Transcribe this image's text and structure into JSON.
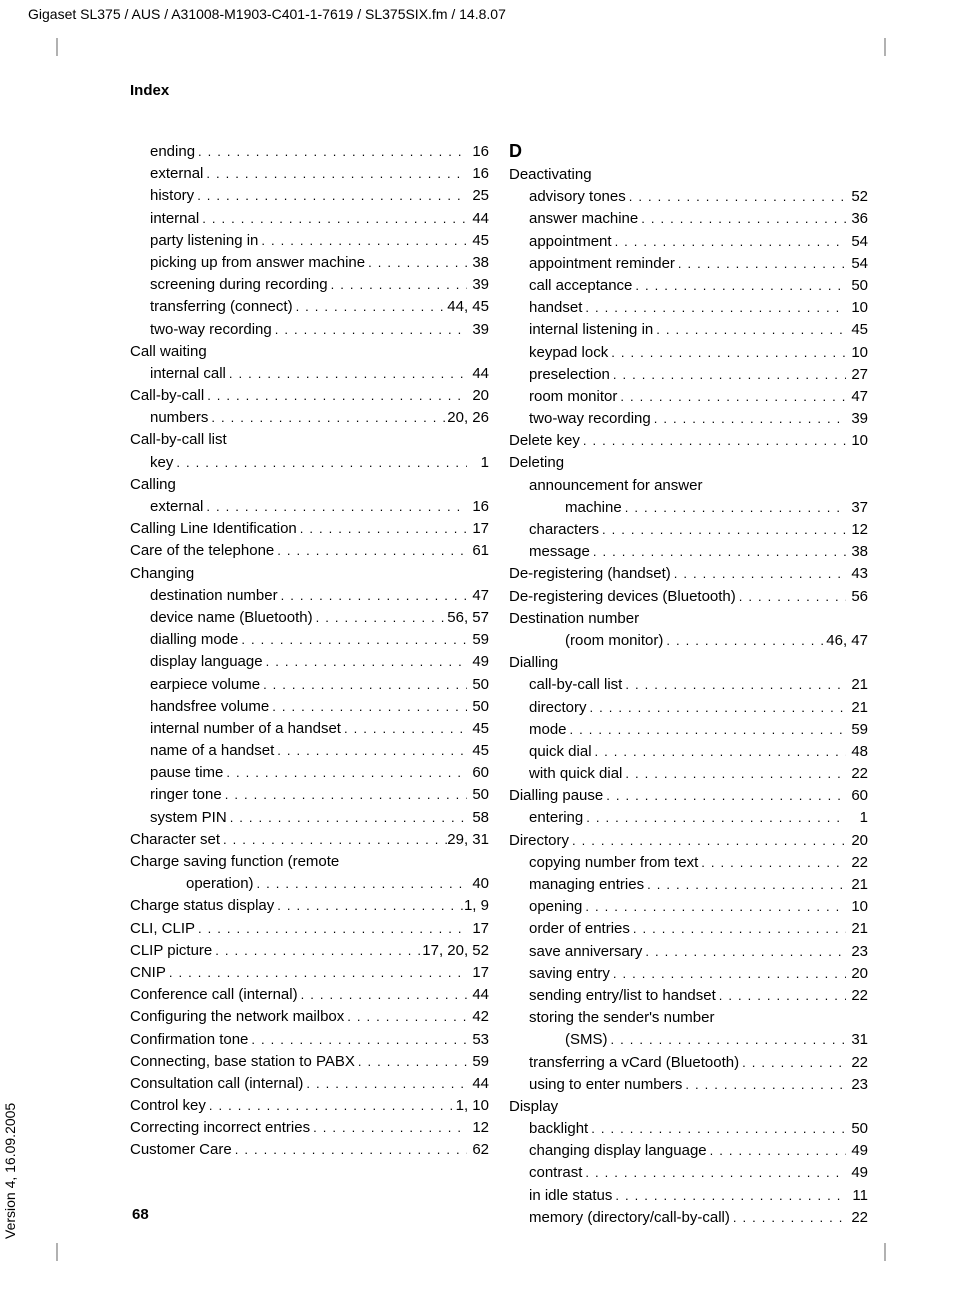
{
  "header": "Gigaset SL375 / AUS / A31008-M1903-C401-1-7619 / SL375SIX.fm / 14.8.07",
  "version_text": "Version 4, 16.09.2005",
  "section_title": "Index",
  "page_number": "68",
  "letterD": "D",
  "columns": {
    "left": [
      {
        "indent": 1,
        "label": "ending",
        "page": "16"
      },
      {
        "indent": 1,
        "label": "external",
        "page": "16"
      },
      {
        "indent": 1,
        "label": "history",
        "page": "25"
      },
      {
        "indent": 1,
        "label": "internal",
        "page": "44"
      },
      {
        "indent": 1,
        "label": "party listening in",
        "page": "45"
      },
      {
        "indent": 1,
        "label": "picking up from answer machine",
        "page": "38"
      },
      {
        "indent": 1,
        "label": "screening during recording",
        "page": "39"
      },
      {
        "indent": 1,
        "label": "transferring (connect)",
        "page": "44, 45"
      },
      {
        "indent": 1,
        "label": "two-way recording",
        "page": "39"
      },
      {
        "indent": 0,
        "label": "Call waiting",
        "no_page": true
      },
      {
        "indent": 1,
        "label": "internal call",
        "page": "44"
      },
      {
        "indent": 0,
        "label": "Call-by-call",
        "page": "20"
      },
      {
        "indent": 1,
        "label": "numbers",
        "page": "20, 26"
      },
      {
        "indent": 0,
        "label": "Call-by-call list",
        "no_page": true
      },
      {
        "indent": 1,
        "label": "key",
        "page": "1"
      },
      {
        "indent": 0,
        "label": "Calling",
        "no_page": true
      },
      {
        "indent": 1,
        "label": "external",
        "page": "16"
      },
      {
        "indent": 0,
        "label": "Calling Line Identification",
        "page": "17"
      },
      {
        "indent": 0,
        "label": "Care of the telephone",
        "page": "61"
      },
      {
        "indent": 0,
        "label": "Changing",
        "no_page": true
      },
      {
        "indent": 1,
        "label": "destination number",
        "page": "47"
      },
      {
        "indent": 1,
        "label": "device name (Bluetooth)",
        "page": "56, 57"
      },
      {
        "indent": 1,
        "label": "dialling mode",
        "page": "59"
      },
      {
        "indent": 1,
        "label": "display language",
        "page": "49"
      },
      {
        "indent": 1,
        "label": "earpiece volume",
        "page": "50"
      },
      {
        "indent": 1,
        "label": "handsfree volume",
        "page": "50"
      },
      {
        "indent": 1,
        "label": "internal number of a handset",
        "page": "45"
      },
      {
        "indent": 1,
        "label": "name of a handset",
        "page": "45"
      },
      {
        "indent": 1,
        "label": "pause time",
        "page": "60"
      },
      {
        "indent": 1,
        "label": "ringer tone",
        "page": "50"
      },
      {
        "indent": 1,
        "label": "system PIN",
        "page": "58"
      },
      {
        "indent": 0,
        "label": "Character set",
        "page": "29, 31"
      },
      {
        "indent": 0,
        "label": "Charge saving function (remote",
        "no_page": true
      },
      {
        "indent": 2,
        "label": "operation)",
        "page": "40"
      },
      {
        "indent": 0,
        "label": "Charge status display",
        "page": "1, 9"
      },
      {
        "indent": 0,
        "label": "CLI, CLIP",
        "page": "17"
      },
      {
        "indent": 0,
        "label": "CLIP picture",
        "page": "17, 20, 52"
      },
      {
        "indent": 0,
        "label": "CNIP",
        "page": "17"
      },
      {
        "indent": 0,
        "label": "Conference call (internal)",
        "page": "44"
      },
      {
        "indent": 0,
        "label": "Configuring the network mailbox",
        "page": "42"
      },
      {
        "indent": 0,
        "label": "Confirmation tone",
        "page": "53"
      },
      {
        "indent": 0,
        "label": "Connecting, base station to PABX",
        "page": "59"
      },
      {
        "indent": 0,
        "label": "Consultation call (internal)",
        "page": "44"
      },
      {
        "indent": 0,
        "label": "Control key",
        "page": "1, 10"
      },
      {
        "indent": 0,
        "label": "Correcting incorrect entries",
        "page": "12"
      },
      {
        "indent": 0,
        "label": "Customer Care",
        "page": "62"
      }
    ],
    "right": [
      {
        "indent": 0,
        "label": "Deactivating",
        "no_page": true
      },
      {
        "indent": 1,
        "label": "advisory tones",
        "page": "52"
      },
      {
        "indent": 1,
        "label": "answer machine",
        "page": "36"
      },
      {
        "indent": 1,
        "label": "appointment",
        "page": "54"
      },
      {
        "indent": 1,
        "label": "appointment reminder",
        "page": "54"
      },
      {
        "indent": 1,
        "label": "call acceptance",
        "page": "50"
      },
      {
        "indent": 1,
        "label": "handset",
        "page": "10"
      },
      {
        "indent": 1,
        "label": "internal listening in",
        "page": "45"
      },
      {
        "indent": 1,
        "label": "keypad lock",
        "page": "10"
      },
      {
        "indent": 1,
        "label": "preselection",
        "page": "27"
      },
      {
        "indent": 1,
        "label": "room monitor",
        "page": "47"
      },
      {
        "indent": 1,
        "label": "two-way recording",
        "page": "39"
      },
      {
        "indent": 0,
        "label": "Delete key",
        "page": "10"
      },
      {
        "indent": 0,
        "label": "Deleting",
        "no_page": true
      },
      {
        "indent": 1,
        "label": "announcement for answer",
        "no_page": true
      },
      {
        "indent": 2,
        "label": "machine",
        "page": "37"
      },
      {
        "indent": 1,
        "label": "characters",
        "page": "12"
      },
      {
        "indent": 1,
        "label": "message",
        "page": "38"
      },
      {
        "indent": 0,
        "label": "De-registering (handset)",
        "page": "43"
      },
      {
        "indent": 0,
        "label": "De-registering devices (Bluetooth)",
        "page": "56"
      },
      {
        "indent": 0,
        "label": "Destination number",
        "no_page": true
      },
      {
        "indent": 2,
        "label": "(room monitor)",
        "page": "46, 47"
      },
      {
        "indent": 0,
        "label": "Dialling",
        "no_page": true
      },
      {
        "indent": 1,
        "label": "call-by-call list",
        "page": "21"
      },
      {
        "indent": 1,
        "label": "directory",
        "page": "21"
      },
      {
        "indent": 1,
        "label": "mode",
        "page": "59"
      },
      {
        "indent": 1,
        "label": "quick dial",
        "page": "48"
      },
      {
        "indent": 1,
        "label": "with quick dial",
        "page": "22"
      },
      {
        "indent": 0,
        "label": "Dialling pause",
        "page": "60"
      },
      {
        "indent": 1,
        "label": "entering",
        "page": "1"
      },
      {
        "indent": 0,
        "label": "Directory",
        "page": "20"
      },
      {
        "indent": 1,
        "label": "copying number from text",
        "page": "22"
      },
      {
        "indent": 1,
        "label": "managing entries",
        "page": "21"
      },
      {
        "indent": 1,
        "label": "opening",
        "page": "10"
      },
      {
        "indent": 1,
        "label": "order of entries",
        "page": "21"
      },
      {
        "indent": 1,
        "label": "save anniversary",
        "page": "23"
      },
      {
        "indent": 1,
        "label": "saving entry",
        "page": "20"
      },
      {
        "indent": 1,
        "label": "sending entry/list to handset",
        "page": "22"
      },
      {
        "indent": 1,
        "label": "storing the sender's number",
        "no_page": true
      },
      {
        "indent": 2,
        "label": "(SMS)",
        "page": "31"
      },
      {
        "indent": 1,
        "label": "transferring a vCard (Bluetooth)",
        "page": "22"
      },
      {
        "indent": 1,
        "label": "using to enter numbers",
        "page": "23"
      },
      {
        "indent": 0,
        "label": "Display",
        "no_page": true
      },
      {
        "indent": 1,
        "label": "backlight",
        "page": "50"
      },
      {
        "indent": 1,
        "label": "changing display language",
        "page": "49"
      },
      {
        "indent": 1,
        "label": "contrast",
        "page": "49"
      },
      {
        "indent": 1,
        "label": "in idle status",
        "page": "11"
      },
      {
        "indent": 1,
        "label": "memory (directory/call-by-call)",
        "page": "22"
      }
    ]
  }
}
